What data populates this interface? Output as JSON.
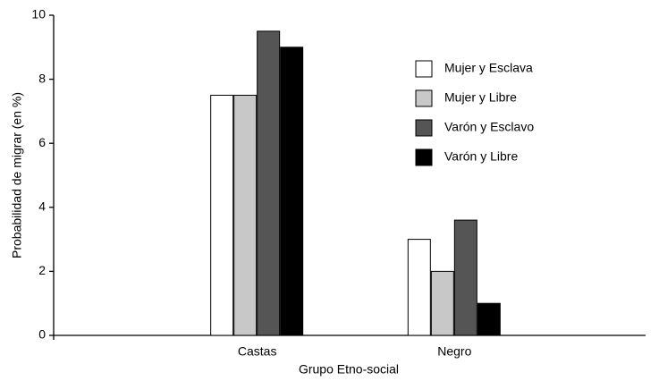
{
  "chart_data": {
    "type": "bar",
    "xlabel": "Grupo Etno-social",
    "ylabel": "Probabilidad de migrar (en %)",
    "categories": [
      "Castas",
      "Negro"
    ],
    "series": [
      {
        "name": "Mujer y Esclava",
        "color": "#ffffff",
        "values": [
          7.5,
          3.0
        ]
      },
      {
        "name": "Mujer y Libre",
        "color": "#c8c8c8",
        "values": [
          7.5,
          2.0
        ]
      },
      {
        "name": "Varón y Esclavo",
        "color": "#555555",
        "values": [
          9.5,
          3.6
        ]
      },
      {
        "name": "Varón y Libre",
        "color": "#000000",
        "values": [
          9.0,
          1.0
        ]
      }
    ],
    "ylim": [
      0,
      10
    ],
    "yticks": [
      0,
      2,
      4,
      6,
      8,
      10
    ],
    "grid": false,
    "legend": "upper right"
  }
}
